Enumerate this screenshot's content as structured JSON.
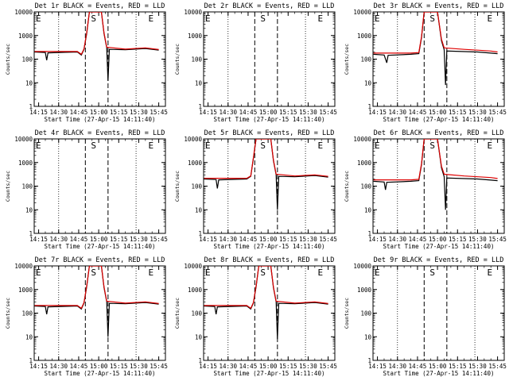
{
  "chart_data": {
    "type": "line",
    "y_scale": "log",
    "ylim": [
      1,
      10000
    ],
    "y_ticks": [
      1,
      10,
      100,
      1000,
      10000
    ],
    "y_tick_labels": [
      "1",
      "10",
      "100",
      "1000",
      "10000"
    ],
    "x_ticks": [
      "14:15",
      "14:30",
      "14:45",
      "15:00",
      "15:15",
      "15:30",
      "15:45"
    ],
    "ylabel": "Counts/sec",
    "xlabel": "Start Time (27-Apr-15 14:11:40)",
    "colors": {
      "events": "#000000",
      "lld": "#dd0000"
    },
    "markers": [
      {
        "label": "E",
        "time": "14:11:40"
      },
      {
        "label": "S",
        "time": "14:55:00"
      },
      {
        "label": "E",
        "time": "15:38:00"
      }
    ],
    "dashed_lines": [
      "14:50:00",
      "15:07:00"
    ],
    "dotted_lines": [
      "14:30:00",
      "15:28:00"
    ],
    "panels": [
      {
        "title": "Det 1r BLACK = Events, RED = LLD",
        "has_data": true,
        "series": [
          {
            "color": "#000000",
            "points": [
              [
                "14:12",
                200
              ],
              [
                "14:20",
                190
              ],
              [
                "14:21",
                90
              ],
              [
                "14:22",
                185
              ],
              [
                "14:35",
                195
              ],
              [
                "14:44",
                200
              ],
              [
                "14:47",
                150
              ],
              [
                "14:49",
                260
              ],
              [
                "14:51",
                1200
              ],
              [
                "14:53",
                10000
              ],
              [
                "15:02",
                10000
              ],
              [
                "15:04",
                1200
              ],
              [
                "15:06",
                300
              ],
              [
                "15:07",
                12
              ],
              [
                "15:08",
                260
              ],
              [
                "15:20",
                250
              ],
              [
                "15:35",
                280
              ],
              [
                "15:45",
                240
              ]
            ]
          },
          {
            "color": "#dd0000",
            "points": [
              [
                "14:12",
                210
              ],
              [
                "14:44",
                210
              ],
              [
                "14:47",
                160
              ],
              [
                "14:49",
                270
              ],
              [
                "14:51",
                1300
              ],
              [
                "14:53",
                10000
              ],
              [
                "15:02",
                10000
              ],
              [
                "15:04",
                1300
              ],
              [
                "15:06",
                320
              ],
              [
                "15:20",
                265
              ],
              [
                "15:35",
                300
              ],
              [
                "15:45",
                255
              ]
            ]
          }
        ]
      },
      {
        "title": "Det 2r BLACK = Events, RED = LLD",
        "has_data": false,
        "series": []
      },
      {
        "title": "Det 3r BLACK = Events, RED = LLD",
        "has_data": true,
        "series": [
          {
            "color": "#000000",
            "points": [
              [
                "14:12",
                160
              ],
              [
                "14:20",
                150
              ],
              [
                "14:22",
                70
              ],
              [
                "14:23",
                145
              ],
              [
                "14:40",
                160
              ],
              [
                "14:46",
                170
              ],
              [
                "14:48",
                800
              ],
              [
                "14:50",
                10000
              ],
              [
                "15:00",
                10000
              ],
              [
                "15:03",
                600
              ],
              [
                "15:05",
                250
              ],
              [
                "15:06",
                8
              ],
              [
                "15:07",
                220
              ],
              [
                "15:30",
                200
              ],
              [
                "15:40",
                180
              ],
              [
                "15:45",
                170
              ]
            ]
          },
          {
            "color": "#dd0000",
            "points": [
              [
                "14:12",
                180
              ],
              [
                "14:40",
                180
              ],
              [
                "14:46",
                190
              ],
              [
                "14:48",
                900
              ],
              [
                "14:50",
                10000
              ],
              [
                "15:00",
                10000
              ],
              [
                "15:03",
                700
              ],
              [
                "15:05",
                300
              ],
              [
                "15:20",
                260
              ],
              [
                "15:30",
                240
              ],
              [
                "15:40",
                220
              ],
              [
                "15:45",
                200
              ]
            ]
          }
        ]
      },
      {
        "title": "Det 4r BLACK = Events, RED = LLD",
        "has_data": false,
        "series": []
      },
      {
        "title": "Det 5r BLACK = Events, RED = LLD",
        "has_data": true,
        "series": [
          {
            "color": "#000000",
            "points": [
              [
                "14:12",
                200
              ],
              [
                "14:21",
                190
              ],
              [
                "14:22",
                80
              ],
              [
                "14:23",
                185
              ],
              [
                "14:44",
                200
              ],
              [
                "14:47",
                260
              ],
              [
                "14:49",
                1500
              ],
              [
                "14:51",
                10000
              ],
              [
                "15:02",
                10000
              ],
              [
                "15:04",
                1200
              ],
              [
                "15:06",
                300
              ],
              [
                "15:07",
                10
              ],
              [
                "15:08",
                260
              ],
              [
                "15:20",
                250
              ],
              [
                "15:35",
                280
              ],
              [
                "15:45",
                240
              ]
            ]
          },
          {
            "color": "#dd0000",
            "points": [
              [
                "14:12",
                215
              ],
              [
                "14:44",
                215
              ],
              [
                "14:47",
                270
              ],
              [
                "14:49",
                1600
              ],
              [
                "14:51",
                10000
              ],
              [
                "15:02",
                10000
              ],
              [
                "15:04",
                1300
              ],
              [
                "15:06",
                320
              ],
              [
                "15:20",
                270
              ],
              [
                "15:35",
                300
              ],
              [
                "15:45",
                260
              ]
            ]
          }
        ]
      },
      {
        "title": "Det 6r BLACK = Events, RED = LLD",
        "has_data": true,
        "series": [
          {
            "color": "#000000",
            "points": [
              [
                "14:12",
                160
              ],
              [
                "14:20",
                150
              ],
              [
                "14:21",
                70
              ],
              [
                "14:22",
                145
              ],
              [
                "14:40",
                160
              ],
              [
                "14:46",
                170
              ],
              [
                "14:48",
                800
              ],
              [
                "14:50",
                10000
              ],
              [
                "15:00",
                10000
              ],
              [
                "15:03",
                600
              ],
              [
                "15:05",
                250
              ],
              [
                "15:06",
                10
              ],
              [
                "15:07",
                220
              ],
              [
                "15:30",
                200
              ],
              [
                "15:40",
                180
              ],
              [
                "15:45",
                170
              ]
            ]
          },
          {
            "color": "#dd0000",
            "points": [
              [
                "14:12",
                185
              ],
              [
                "14:40",
                185
              ],
              [
                "14:46",
                195
              ],
              [
                "14:48",
                900
              ],
              [
                "14:50",
                10000
              ],
              [
                "15:00",
                10000
              ],
              [
                "15:03",
                700
              ],
              [
                "15:05",
                320
              ],
              [
                "15:20",
                270
              ],
              [
                "15:30",
                250
              ],
              [
                "15:40",
                230
              ],
              [
                "15:45",
                210
              ]
            ]
          }
        ]
      },
      {
        "title": "Det 7r BLACK = Events, RED = LLD",
        "has_data": true,
        "series": [
          {
            "color": "#000000",
            "points": [
              [
                "14:12",
                200
              ],
              [
                "14:20",
                190
              ],
              [
                "14:21",
                90
              ],
              [
                "14:22",
                185
              ],
              [
                "14:44",
                200
              ],
              [
                "14:47",
                150
              ],
              [
                "14:49",
                270
              ],
              [
                "14:51",
                1300
              ],
              [
                "14:53",
                10000
              ],
              [
                "15:02",
                10000
              ],
              [
                "15:04",
                1200
              ],
              [
                "15:06",
                300
              ],
              [
                "15:07",
                10
              ],
              [
                "15:08",
                260
              ],
              [
                "15:20",
                250
              ],
              [
                "15:35",
                280
              ],
              [
                "15:45",
                240
              ]
            ]
          },
          {
            "color": "#dd0000",
            "points": [
              [
                "14:12",
                210
              ],
              [
                "14:44",
                210
              ],
              [
                "14:47",
                160
              ],
              [
                "14:49",
                280
              ],
              [
                "14:51",
                1400
              ],
              [
                "14:53",
                10000
              ],
              [
                "15:02",
                10000
              ],
              [
                "15:04",
                1300
              ],
              [
                "15:06",
                320
              ],
              [
                "15:20",
                265
              ],
              [
                "15:35",
                300
              ],
              [
                "15:45",
                255
              ]
            ]
          }
        ]
      },
      {
        "title": "Det 8r BLACK = Events, RED = LLD",
        "has_data": true,
        "series": [
          {
            "color": "#000000",
            "points": [
              [
                "14:12",
                200
              ],
              [
                "14:20",
                190
              ],
              [
                "14:21",
                90
              ],
              [
                "14:22",
                185
              ],
              [
                "14:44",
                200
              ],
              [
                "14:47",
                150
              ],
              [
                "14:49",
                270
              ],
              [
                "14:51",
                1300
              ],
              [
                "14:53",
                10000
              ],
              [
                "15:02",
                10000
              ],
              [
                "15:04",
                1200
              ],
              [
                "15:06",
                300
              ],
              [
                "15:07",
                8
              ],
              [
                "15:08",
                260
              ],
              [
                "15:20",
                250
              ],
              [
                "15:35",
                280
              ],
              [
                "15:45",
                240
              ]
            ]
          },
          {
            "color": "#dd0000",
            "points": [
              [
                "14:12",
                210
              ],
              [
                "14:44",
                210
              ],
              [
                "14:47",
                160
              ],
              [
                "14:49",
                280
              ],
              [
                "14:51",
                1400
              ],
              [
                "14:53",
                10000
              ],
              [
                "15:02",
                10000
              ],
              [
                "15:04",
                1300
              ],
              [
                "15:06",
                320
              ],
              [
                "15:20",
                265
              ],
              [
                "15:35",
                300
              ],
              [
                "15:45",
                255
              ]
            ]
          }
        ]
      },
      {
        "title": "Det 9r BLACK = Events, RED = LLD",
        "has_data": false,
        "series": []
      }
    ]
  }
}
